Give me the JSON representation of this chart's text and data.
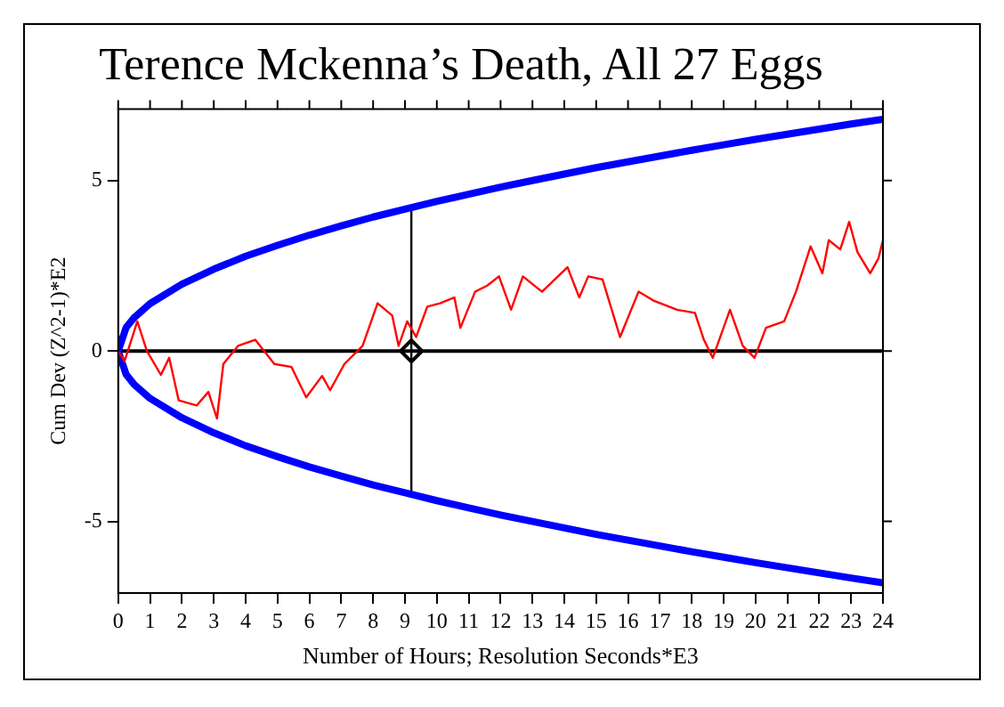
{
  "chart_data": {
    "type": "line",
    "title": "Terence Mckenna’s Death, All 27 Eggs",
    "xlabel": "Number of Hours; Resolution Seconds*E3",
    "ylabel": "Cum Dev (Z^2-1)*E2",
    "xlim": [
      0,
      24
    ],
    "xticks": [
      0,
      1,
      2,
      3,
      4,
      5,
      6,
      7,
      8,
      9,
      10,
      11,
      12,
      13,
      14,
      15,
      16,
      17,
      18,
      19,
      20,
      21,
      22,
      23,
      24
    ],
    "ylim": [
      -7.1,
      7.1
    ],
    "yticks": [
      -5,
      0,
      5
    ],
    "grid": false,
    "legend": false,
    "ref_lines": [
      {
        "axis": "y",
        "value": 0,
        "color": "#000000"
      }
    ],
    "series": [
      {
        "color": "#ff0000",
        "x": [
          0,
          0.2,
          0.6,
          0.9,
          1.34,
          1.6,
          1.9,
          2.46,
          2.83,
          3.1,
          3.3,
          3.76,
          4.3,
          4.9,
          5.44,
          5.9,
          6.4,
          6.65,
          7.1,
          7.67,
          8.14,
          8.6,
          8.8,
          9.07,
          9.35,
          9.7,
          10.1,
          10.55,
          10.74,
          11.2,
          11.58,
          11.95,
          12.33,
          12.7,
          13.3,
          14.1,
          14.47,
          14.75,
          15.2,
          15.6,
          15.75,
          16.33,
          16.8,
          17.54,
          18.1,
          18.38,
          18.66,
          19.2,
          19.6,
          19.97,
          20.33,
          20.9,
          21.27,
          21.73,
          22.1,
          22.3,
          22.66,
          22.94,
          23.2,
          23.6,
          23.86,
          24
        ],
        "values": [
          0,
          -0.3,
          0.87,
          0,
          -0.7,
          -0.2,
          -1.45,
          -1.6,
          -1.2,
          -1.98,
          -0.38,
          0.15,
          0.33,
          -0.38,
          -0.47,
          -1.36,
          -0.73,
          -1.15,
          -0.38,
          0.15,
          1.4,
          1.04,
          0.15,
          0.87,
          0.41,
          1.3,
          1.4,
          1.57,
          0.68,
          1.74,
          1.92,
          2.19,
          1.21,
          2.19,
          1.74,
          2.46,
          1.57,
          2.19,
          2.1,
          0.87,
          0.41,
          1.74,
          1.48,
          1.21,
          1.12,
          0.33,
          -0.2,
          1.21,
          0.15,
          -0.2,
          0.68,
          0.87,
          1.74,
          3.07,
          2.28,
          3.25,
          2.98,
          3.79,
          2.9,
          2.28,
          2.72,
          3.25
        ]
      },
      {
        "color": "#0000ff",
        "x": [
          0,
          0.25,
          0.5,
          1,
          2,
          3,
          4,
          5,
          6,
          7,
          8,
          9,
          10,
          11,
          12,
          13,
          14,
          15,
          16,
          17,
          18,
          19,
          20,
          21,
          22,
          23,
          24
        ],
        "values": [
          0,
          0.69,
          0.98,
          1.39,
          1.96,
          2.4,
          2.78,
          3.1,
          3.4,
          3.67,
          3.93,
          4.16,
          4.39,
          4.6,
          4.81,
          5,
          5.19,
          5.38,
          5.55,
          5.72,
          5.89,
          6.05,
          6.21,
          6.36,
          6.51,
          6.66,
          6.8
        ]
      },
      {
        "color": "#0000ff",
        "x": [
          0,
          0.25,
          0.5,
          1,
          2,
          3,
          4,
          5,
          6,
          7,
          8,
          9,
          10,
          11,
          12,
          13,
          14,
          15,
          16,
          17,
          18,
          19,
          20,
          21,
          22,
          23,
          24
        ],
        "values": [
          0,
          -0.69,
          -0.98,
          -1.39,
          -1.96,
          -2.4,
          -2.78,
          -3.1,
          -3.4,
          -3.67,
          -3.93,
          -4.16,
          -4.39,
          -4.6,
          -4.81,
          -5,
          -5.19,
          -5.38,
          -5.55,
          -5.72,
          -5.89,
          -6.05,
          -6.21,
          -6.36,
          -6.51,
          -6.66,
          -6.8
        ]
      },
      {
        "color": "#000000",
        "x": [
          9.2,
          9.2
        ],
        "values": [
          -4.21,
          4.21
        ]
      },
      {
        "type": "scatter",
        "color": "#000000",
        "marker": "diamond",
        "x": [
          9.2
        ],
        "values": [
          0
        ]
      }
    ]
  }
}
